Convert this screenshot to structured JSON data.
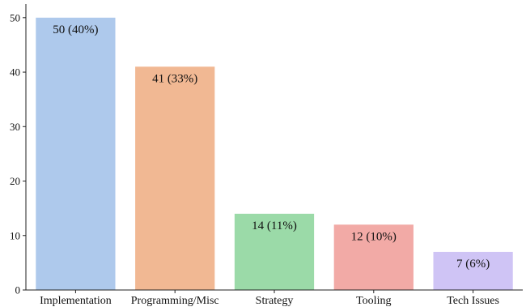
{
  "chart_data": {
    "type": "bar",
    "categories": [
      "Implementation",
      "Programming/Misc",
      "Strategy",
      "Tooling",
      "Tech Issues"
    ],
    "values": [
      50,
      41,
      14,
      12,
      7
    ],
    "data_labels": [
      "50 (40%)",
      "41 (33%)",
      "14 (11%)",
      "12 (10%)",
      "7 (6%)"
    ],
    "colors": [
      "#aec9ec",
      "#f1b893",
      "#9bdaa8",
      "#f2aaa6",
      "#cfc4f5"
    ],
    "title": "",
    "xlabel": "",
    "ylabel": "",
    "ylim": [
      0,
      52.5
    ],
    "yticks": [
      0,
      10,
      20,
      30,
      40,
      50
    ],
    "grid": false,
    "legend": "none"
  }
}
